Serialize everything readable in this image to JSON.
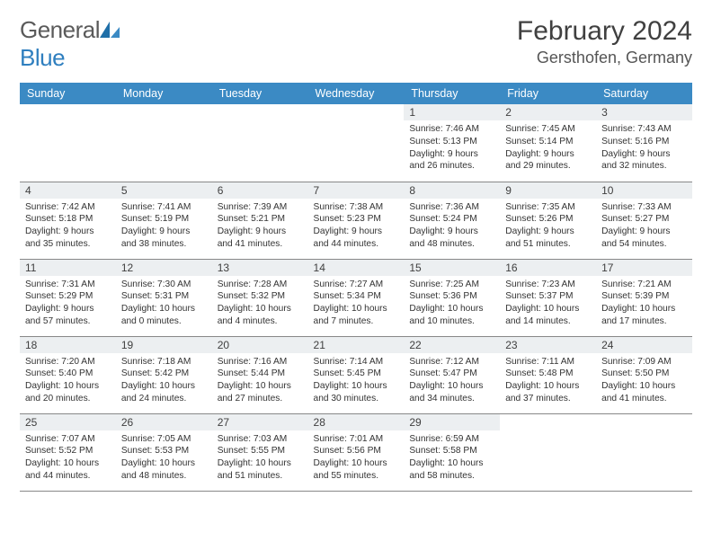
{
  "brand": {
    "part1": "General",
    "part2": "Blue"
  },
  "title": "February 2024",
  "location": "Gersthofen, Germany",
  "colors": {
    "headerBg": "#3b8ac4",
    "dayNumBg": "#eceff1",
    "logoBlue": "#2f7fbf",
    "text": "#333333"
  },
  "weekdays": [
    "Sunday",
    "Monday",
    "Tuesday",
    "Wednesday",
    "Thursday",
    "Friday",
    "Saturday"
  ],
  "grid": [
    [
      {
        "empty": true
      },
      {
        "empty": true
      },
      {
        "empty": true
      },
      {
        "empty": true
      },
      {
        "n": "1",
        "sr": "Sunrise: 7:46 AM",
        "ss": "Sunset: 5:13 PM",
        "d1": "Daylight: 9 hours",
        "d2": "and 26 minutes."
      },
      {
        "n": "2",
        "sr": "Sunrise: 7:45 AM",
        "ss": "Sunset: 5:14 PM",
        "d1": "Daylight: 9 hours",
        "d2": "and 29 minutes."
      },
      {
        "n": "3",
        "sr": "Sunrise: 7:43 AM",
        "ss": "Sunset: 5:16 PM",
        "d1": "Daylight: 9 hours",
        "d2": "and 32 minutes."
      }
    ],
    [
      {
        "n": "4",
        "sr": "Sunrise: 7:42 AM",
        "ss": "Sunset: 5:18 PM",
        "d1": "Daylight: 9 hours",
        "d2": "and 35 minutes."
      },
      {
        "n": "5",
        "sr": "Sunrise: 7:41 AM",
        "ss": "Sunset: 5:19 PM",
        "d1": "Daylight: 9 hours",
        "d2": "and 38 minutes."
      },
      {
        "n": "6",
        "sr": "Sunrise: 7:39 AM",
        "ss": "Sunset: 5:21 PM",
        "d1": "Daylight: 9 hours",
        "d2": "and 41 minutes."
      },
      {
        "n": "7",
        "sr": "Sunrise: 7:38 AM",
        "ss": "Sunset: 5:23 PM",
        "d1": "Daylight: 9 hours",
        "d2": "and 44 minutes."
      },
      {
        "n": "8",
        "sr": "Sunrise: 7:36 AM",
        "ss": "Sunset: 5:24 PM",
        "d1": "Daylight: 9 hours",
        "d2": "and 48 minutes."
      },
      {
        "n": "9",
        "sr": "Sunrise: 7:35 AM",
        "ss": "Sunset: 5:26 PM",
        "d1": "Daylight: 9 hours",
        "d2": "and 51 minutes."
      },
      {
        "n": "10",
        "sr": "Sunrise: 7:33 AM",
        "ss": "Sunset: 5:27 PM",
        "d1": "Daylight: 9 hours",
        "d2": "and 54 minutes."
      }
    ],
    [
      {
        "n": "11",
        "sr": "Sunrise: 7:31 AM",
        "ss": "Sunset: 5:29 PM",
        "d1": "Daylight: 9 hours",
        "d2": "and 57 minutes."
      },
      {
        "n": "12",
        "sr": "Sunrise: 7:30 AM",
        "ss": "Sunset: 5:31 PM",
        "d1": "Daylight: 10 hours",
        "d2": "and 0 minutes."
      },
      {
        "n": "13",
        "sr": "Sunrise: 7:28 AM",
        "ss": "Sunset: 5:32 PM",
        "d1": "Daylight: 10 hours",
        "d2": "and 4 minutes."
      },
      {
        "n": "14",
        "sr": "Sunrise: 7:27 AM",
        "ss": "Sunset: 5:34 PM",
        "d1": "Daylight: 10 hours",
        "d2": "and 7 minutes."
      },
      {
        "n": "15",
        "sr": "Sunrise: 7:25 AM",
        "ss": "Sunset: 5:36 PM",
        "d1": "Daylight: 10 hours",
        "d2": "and 10 minutes."
      },
      {
        "n": "16",
        "sr": "Sunrise: 7:23 AM",
        "ss": "Sunset: 5:37 PM",
        "d1": "Daylight: 10 hours",
        "d2": "and 14 minutes."
      },
      {
        "n": "17",
        "sr": "Sunrise: 7:21 AM",
        "ss": "Sunset: 5:39 PM",
        "d1": "Daylight: 10 hours",
        "d2": "and 17 minutes."
      }
    ],
    [
      {
        "n": "18",
        "sr": "Sunrise: 7:20 AM",
        "ss": "Sunset: 5:40 PM",
        "d1": "Daylight: 10 hours",
        "d2": "and 20 minutes."
      },
      {
        "n": "19",
        "sr": "Sunrise: 7:18 AM",
        "ss": "Sunset: 5:42 PM",
        "d1": "Daylight: 10 hours",
        "d2": "and 24 minutes."
      },
      {
        "n": "20",
        "sr": "Sunrise: 7:16 AM",
        "ss": "Sunset: 5:44 PM",
        "d1": "Daylight: 10 hours",
        "d2": "and 27 minutes."
      },
      {
        "n": "21",
        "sr": "Sunrise: 7:14 AM",
        "ss": "Sunset: 5:45 PM",
        "d1": "Daylight: 10 hours",
        "d2": "and 30 minutes."
      },
      {
        "n": "22",
        "sr": "Sunrise: 7:12 AM",
        "ss": "Sunset: 5:47 PM",
        "d1": "Daylight: 10 hours",
        "d2": "and 34 minutes."
      },
      {
        "n": "23",
        "sr": "Sunrise: 7:11 AM",
        "ss": "Sunset: 5:48 PM",
        "d1": "Daylight: 10 hours",
        "d2": "and 37 minutes."
      },
      {
        "n": "24",
        "sr": "Sunrise: 7:09 AM",
        "ss": "Sunset: 5:50 PM",
        "d1": "Daylight: 10 hours",
        "d2": "and 41 minutes."
      }
    ],
    [
      {
        "n": "25",
        "sr": "Sunrise: 7:07 AM",
        "ss": "Sunset: 5:52 PM",
        "d1": "Daylight: 10 hours",
        "d2": "and 44 minutes."
      },
      {
        "n": "26",
        "sr": "Sunrise: 7:05 AM",
        "ss": "Sunset: 5:53 PM",
        "d1": "Daylight: 10 hours",
        "d2": "and 48 minutes."
      },
      {
        "n": "27",
        "sr": "Sunrise: 7:03 AM",
        "ss": "Sunset: 5:55 PM",
        "d1": "Daylight: 10 hours",
        "d2": "and 51 minutes."
      },
      {
        "n": "28",
        "sr": "Sunrise: 7:01 AM",
        "ss": "Sunset: 5:56 PM",
        "d1": "Daylight: 10 hours",
        "d2": "and 55 minutes."
      },
      {
        "n": "29",
        "sr": "Sunrise: 6:59 AM",
        "ss": "Sunset: 5:58 PM",
        "d1": "Daylight: 10 hours",
        "d2": "and 58 minutes."
      },
      {
        "empty": true
      },
      {
        "empty": true
      }
    ]
  ]
}
